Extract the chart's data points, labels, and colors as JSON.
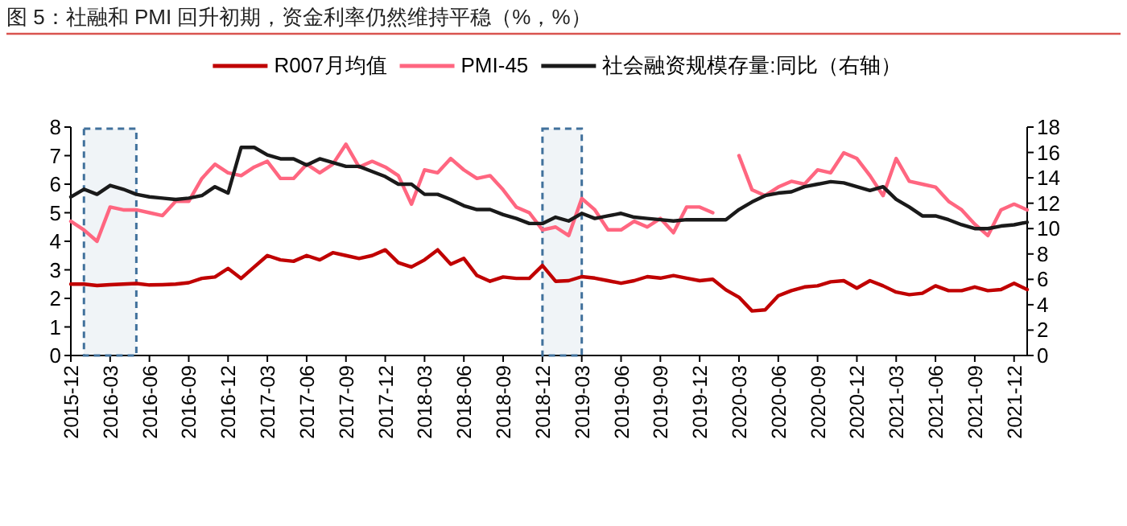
{
  "chart_data": {
    "type": "line",
    "title": "图 5：社融和 PMI 回升初期，资金利率仍然维持平稳（%，%）",
    "x": [
      "2015-12",
      "2016-01",
      "2016-02",
      "2016-03",
      "2016-04",
      "2016-05",
      "2016-06",
      "2016-07",
      "2016-08",
      "2016-09",
      "2016-10",
      "2016-11",
      "2016-12",
      "2017-01",
      "2017-02",
      "2017-03",
      "2017-04",
      "2017-05",
      "2017-06",
      "2017-07",
      "2017-08",
      "2017-09",
      "2017-10",
      "2017-11",
      "2017-12",
      "2018-01",
      "2018-02",
      "2018-03",
      "2018-04",
      "2018-05",
      "2018-06",
      "2018-07",
      "2018-08",
      "2018-09",
      "2018-10",
      "2018-11",
      "2018-12",
      "2019-01",
      "2019-02",
      "2019-03",
      "2019-04",
      "2019-05",
      "2019-06",
      "2019-07",
      "2019-08",
      "2019-09",
      "2019-10",
      "2019-11",
      "2019-12",
      "2020-01",
      "2020-02",
      "2020-03",
      "2020-04",
      "2020-05",
      "2020-06",
      "2020-07",
      "2020-08",
      "2020-09",
      "2020-10",
      "2020-11",
      "2020-12",
      "2021-01",
      "2021-02",
      "2021-03",
      "2021-04",
      "2021-05",
      "2021-06",
      "2021-07",
      "2021-08",
      "2021-09",
      "2021-10",
      "2021-11",
      "2021-12",
      "2022-01"
    ],
    "series": [
      {
        "name": "R007月均值",
        "color": "#c00000",
        "values": [
          2.5,
          2.5,
          2.45,
          2.48,
          2.5,
          2.52,
          2.47,
          2.48,
          2.5,
          2.55,
          2.7,
          2.75,
          3.05,
          2.7,
          3.1,
          3.5,
          3.35,
          3.3,
          3.5,
          3.35,
          3.6,
          3.5,
          3.4,
          3.5,
          3.7,
          3.25,
          3.1,
          3.35,
          3.7,
          3.2,
          3.4,
          2.8,
          2.6,
          2.75,
          2.7,
          2.7,
          3.15,
          2.6,
          2.62,
          2.76,
          2.71,
          2.62,
          2.53,
          2.62,
          2.76,
          2.71,
          2.8,
          2.71,
          2.62,
          2.67,
          2.3,
          2.04,
          1.56,
          1.6,
          2.09,
          2.27,
          2.4,
          2.44,
          2.58,
          2.62,
          2.36,
          2.62,
          2.44,
          2.22,
          2.13,
          2.18,
          2.44,
          2.27,
          2.27,
          2.4,
          2.27,
          2.31,
          2.53,
          2.31
        ]
      },
      {
        "name": "PMI-45",
        "color": "#ff6680",
        "values": [
          4.7,
          4.4,
          4.0,
          5.2,
          5.1,
          5.1,
          5.0,
          4.9,
          5.4,
          5.4,
          6.2,
          6.7,
          6.4,
          6.3,
          6.6,
          6.8,
          6.2,
          6.2,
          6.7,
          6.4,
          6.7,
          7.4,
          6.6,
          6.8,
          6.6,
          6.3,
          5.3,
          6.5,
          6.4,
          6.9,
          6.5,
          6.2,
          6.3,
          5.8,
          5.2,
          5.0,
          4.4,
          4.5,
          4.2,
          5.5,
          5.1,
          4.4,
          4.4,
          4.7,
          4.5,
          4.8,
          4.3,
          5.2,
          5.2,
          5.0,
          null,
          7.0,
          5.8,
          5.6,
          5.9,
          6.1,
          6.0,
          6.5,
          6.4,
          7.1,
          6.9,
          6.3,
          5.6,
          6.9,
          6.1,
          6.0,
          5.9,
          5.4,
          5.1,
          4.6,
          4.2,
          5.1,
          5.3,
          5.1
        ]
      },
      {
        "name": "社会融资规模存量:同比（右轴）",
        "color": "#1a1a1a",
        "axis": "y2",
        "values": [
          12.5,
          13.1,
          12.7,
          13.4,
          13.1,
          12.7,
          12.5,
          12.4,
          12.3,
          12.4,
          12.6,
          13.3,
          12.8,
          16.4,
          16.4,
          15.8,
          15.5,
          15.5,
          15.0,
          15.5,
          15.2,
          14.9,
          14.9,
          14.5,
          14.1,
          13.5,
          13.5,
          12.7,
          12.7,
          12.3,
          11.8,
          11.5,
          11.5,
          11.1,
          10.8,
          10.4,
          10.4,
          10.9,
          10.6,
          11.2,
          10.8,
          11.0,
          11.2,
          10.9,
          10.8,
          10.7,
          10.6,
          10.7,
          10.7,
          10.7,
          10.7,
          11.5,
          12.1,
          12.6,
          12.8,
          12.9,
          13.3,
          13.5,
          13.7,
          13.6,
          13.3,
          13.0,
          13.3,
          12.3,
          11.7,
          11.0,
          11.0,
          10.7,
          10.3,
          10.0,
          10.0,
          10.2,
          10.3,
          10.5
        ]
      }
    ],
    "xlim": [
      "2015-12",
      "2022-01"
    ],
    "xticks": [
      "2015-12",
      "2016-03",
      "2016-06",
      "2016-09",
      "2016-12",
      "2017-03",
      "2017-06",
      "2017-09",
      "2017-12",
      "2018-03",
      "2018-06",
      "2018-09",
      "2018-12",
      "2019-03",
      "2019-06",
      "2019-09",
      "2019-12",
      "2020-03",
      "2020-06",
      "2020-09",
      "2020-12",
      "2021-03",
      "2021-06",
      "2021-09",
      "2021-12"
    ],
    "ylim": [
      0,
      8
    ],
    "yticks": [
      0,
      1,
      2,
      3,
      4,
      5,
      6,
      7,
      8
    ],
    "y2lim": [
      0,
      18
    ],
    "y2ticks": [
      0,
      2,
      4,
      6,
      8,
      10,
      12,
      14,
      16,
      18
    ],
    "bands": [
      {
        "axis": "x",
        "from": "2016-01",
        "to": "2016-05",
        "color": "#41719c"
      },
      {
        "axis": "x",
        "from": "2018-12",
        "to": "2019-03",
        "color": "#41719c"
      }
    ],
    "legend": "top",
    "grid": false,
    "marker": "none",
    "line_style": "solid"
  }
}
